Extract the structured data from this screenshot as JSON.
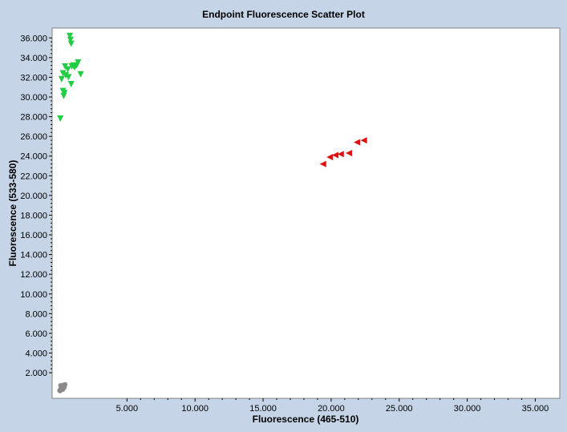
{
  "chart_data": {
    "type": "scatter",
    "title": "Endpoint Fluorescence Scatter Plot",
    "xlabel": "Fluorescence (465-510)",
    "ylabel": "Fluorescence (533-580)",
    "xlim": [
      -500,
      36800
    ],
    "ylim": [
      -600,
      37000
    ],
    "x_ticks": [
      5000,
      10000,
      15000,
      20000,
      25000,
      30000,
      35000
    ],
    "x_tick_labels": [
      "5.000",
      "10.000",
      "15.000",
      "20.000",
      "25.000",
      "30.000",
      "35.000"
    ],
    "y_ticks": [
      2000,
      4000,
      6000,
      8000,
      10000,
      12000,
      14000,
      16000,
      18000,
      20000,
      22000,
      24000,
      26000,
      28000,
      30000,
      32000,
      34000,
      36000
    ],
    "y_tick_labels": [
      "2.000",
      "4.000",
      "6.000",
      "8.000",
      "10.000",
      "12.000",
      "14.000",
      "16.000",
      "18.000",
      "20.000",
      "22.000",
      "24.000",
      "26.000",
      "28.000",
      "30.000",
      "32.000",
      "34.000",
      "36.000"
    ],
    "grid": false,
    "legend": "none",
    "series": [
      {
        "marker": "triangle-down",
        "color": "#22cc44",
        "x": [
          800,
          850,
          900,
          450,
          1050,
          1150,
          1400,
          1300,
          950,
          650,
          300,
          500,
          700,
          200,
          900,
          300,
          400,
          350,
          1600,
          100
        ],
        "y": [
          36200,
          35800,
          35400,
          33100,
          33200,
          33000,
          33500,
          33200,
          33100,
          32800,
          32400,
          32200,
          32000,
          31800,
          31300,
          30600,
          30400,
          30100,
          32300,
          27800
        ]
      },
      {
        "marker": "triangle-left",
        "color": "#dd1111",
        "x": [
          19400,
          19900,
          20300,
          20700,
          21300,
          21900,
          22400
        ],
        "y": [
          23200,
          23900,
          24100,
          24200,
          24300,
          25400,
          25600
        ]
      },
      {
        "marker": "circle",
        "color": "#8a8a8a",
        "x": [
          50,
          100,
          150,
          200,
          250,
          300,
          350,
          400,
          120,
          220,
          320,
          80,
          180,
          280,
          380,
          450
        ],
        "y": [
          200,
          300,
          250,
          400,
          350,
          500,
          450,
          600,
          700,
          650,
          750,
          150,
          550,
          300,
          500,
          800
        ]
      }
    ]
  }
}
